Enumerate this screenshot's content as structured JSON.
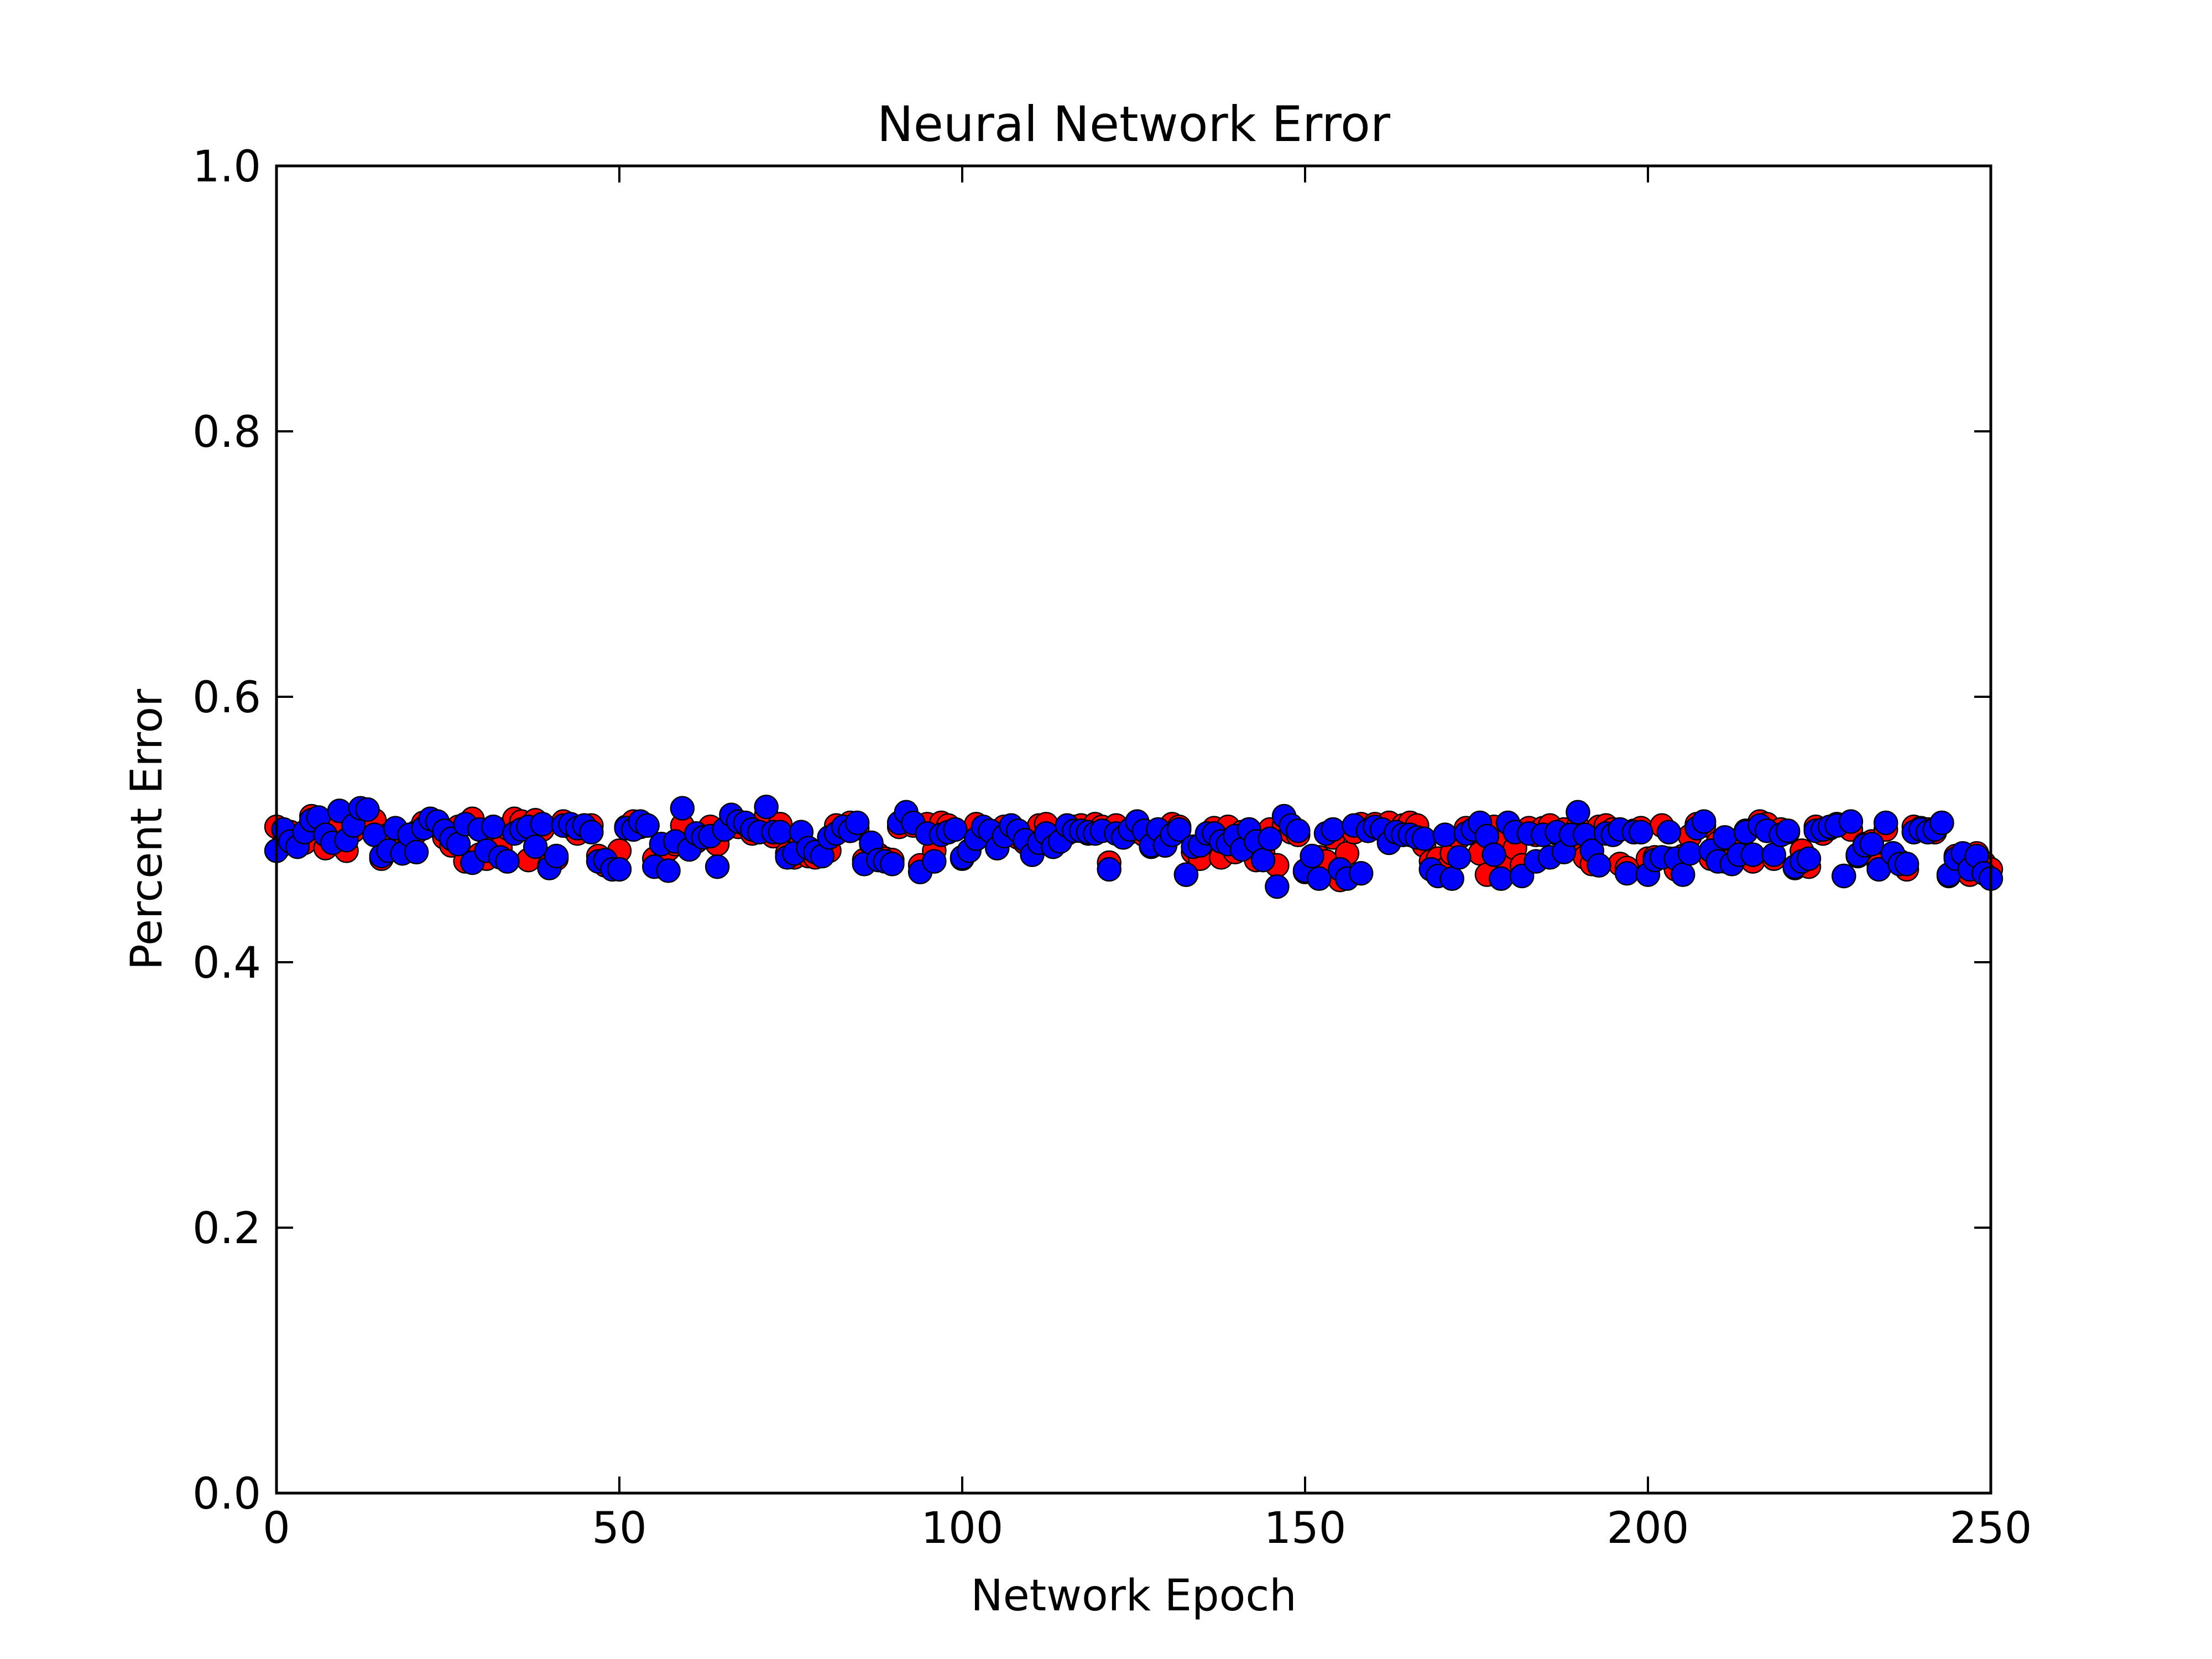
{
  "chart_data": {
    "type": "scatter",
    "title": "Neural Network Error",
    "xlabel": "Network Epoch",
    "ylabel": "Percent Error",
    "xlim": [
      0,
      250
    ],
    "ylim": [
      0.0,
      1.0
    ],
    "xticks": [
      0,
      50,
      100,
      150,
      200,
      250
    ],
    "xtick_labels": [
      "0",
      "50",
      "100",
      "150",
      "200",
      "250"
    ],
    "yticks": [
      0.0,
      0.2,
      0.4,
      0.6,
      0.8,
      1.0
    ],
    "ytick_labels": [
      "0.0",
      "0.2",
      "0.4",
      "0.6",
      "0.8",
      "1.0"
    ],
    "grid": false,
    "legend": "none",
    "series": [
      {
        "color": "#ff0000",
        "values": [
          0.502,
          0.489,
          0.498,
          0.494,
          0.49,
          0.51,
          0.508,
          0.486,
          0.494,
          0.503,
          0.484,
          0.499,
          0.508,
          0.511,
          0.507,
          0.478,
          0.496,
          0.497,
          0.485,
          0.494,
          0.498,
          0.505,
          0.506,
          0.502,
          0.494,
          0.488,
          0.502,
          0.476,
          0.508,
          0.481,
          0.478,
          0.493,
          0.486,
          0.501,
          0.508,
          0.506,
          0.477,
          0.507,
          0.5,
          0.473,
          0.478,
          0.506,
          0.502,
          0.497,
          0.501,
          0.503,
          0.48,
          0.473,
          0.471,
          0.484,
          0.502,
          0.506,
          0.502,
          0.503,
          0.478,
          0.472,
          0.485,
          0.489,
          0.503,
          0.487,
          0.491,
          0.496,
          0.502,
          0.489,
          0.5,
          0.508,
          0.502,
          0.504,
          0.497,
          0.501,
          0.511,
          0.495,
          0.504,
          0.482,
          0.479,
          0.491,
          0.48,
          0.479,
          0.48,
          0.484,
          0.503,
          0.501,
          0.505,
          0.501,
          0.477,
          0.489,
          0.481,
          0.478,
          0.477,
          0.502,
          0.508,
          0.503,
          0.473,
          0.504,
          0.484,
          0.505,
          0.503,
          0.5,
          0.478,
          0.484,
          0.504,
          0.499,
          0.498,
          0.486,
          0.502,
          0.496,
          0.494,
          0.49,
          0.482,
          0.503,
          0.504,
          0.487,
          0.494,
          0.497,
          0.502,
          0.503,
          0.497,
          0.504,
          0.502,
          0.475,
          0.503,
          0.496,
          0.498,
          0.501,
          0.496,
          0.487,
          0.499,
          0.488,
          0.504,
          0.502,
          0.466,
          0.483,
          0.478,
          0.494,
          0.501,
          0.479,
          0.502,
          0.483,
          0.498,
          0.5,
          0.477,
          0.483,
          0.5,
          0.473,
          0.503,
          0.498,
          0.496,
          0.468,
          0.475,
          0.479,
          0.476,
          0.494,
          0.462,
          0.482,
          0.498,
          0.504,
          0.5,
          0.504,
          0.501,
          0.505,
          0.496,
          0.503,
          0.505,
          0.503,
          0.488,
          0.476,
          0.478,
          0.47,
          0.482,
          0.494,
          0.501,
          0.497,
          0.482,
          0.466,
          0.502,
          0.49,
          0.474,
          0.486,
          0.473,
          0.501,
          0.496,
          0.501,
          0.503,
          0.497,
          0.5,
          0.486,
          0.502,
          0.479,
          0.474,
          0.502,
          0.503,
          0.5,
          0.474,
          0.471,
          0.499,
          0.501,
          0.478,
          0.479,
          0.503,
          0.478,
          0.47,
          0.48,
          0.495,
          0.504,
          0.503,
          0.478,
          0.49,
          0.476,
          0.477,
          0.486,
          0.499,
          0.476,
          0.506,
          0.504,
          0.478,
          0.5,
          0.498,
          0.471,
          0.484,
          0.472,
          0.502,
          0.497,
          0.501,
          0.504,
          0.465,
          0.5,
          0.48,
          0.489,
          0.491,
          0.473,
          0.5,
          0.482,
          0.476,
          0.47,
          0.502,
          0.501,
          0.5,
          0.498,
          0.505,
          0.465,
          0.48,
          0.479,
          0.466,
          0.482,
          0.475,
          0.47
        ]
      },
      {
        "color": "#0000ff",
        "values": [
          0.484,
          0.5,
          0.491,
          0.487,
          0.498,
          0.507,
          0.509,
          0.496,
          0.49,
          0.514,
          0.492,
          0.503,
          0.516,
          0.515,
          0.496,
          0.48,
          0.484,
          0.501,
          0.482,
          0.496,
          0.483,
          0.501,
          0.508,
          0.506,
          0.499,
          0.493,
          0.489,
          0.504,
          0.475,
          0.5,
          0.484,
          0.502,
          0.479,
          0.476,
          0.497,
          0.5,
          0.502,
          0.487,
          0.504,
          0.471,
          0.48,
          0.503,
          0.504,
          0.501,
          0.503,
          0.498,
          0.476,
          0.477,
          0.47,
          0.47,
          0.501,
          0.5,
          0.506,
          0.503,
          0.472,
          0.489,
          0.469,
          0.491,
          0.516,
          0.485,
          0.497,
          0.494,
          0.495,
          0.472,
          0.5,
          0.511,
          0.506,
          0.505,
          0.5,
          0.498,
          0.517,
          0.498,
          0.498,
          0.479,
          0.482,
          0.498,
          0.486,
          0.483,
          0.48,
          0.494,
          0.497,
          0.502,
          0.499,
          0.505,
          0.474,
          0.49,
          0.477,
          0.476,
          0.474,
          0.505,
          0.513,
          0.505,
          0.468,
          0.497,
          0.476,
          0.496,
          0.498,
          0.5,
          0.479,
          0.484,
          0.493,
          0.502,
          0.499,
          0.486,
          0.495,
          0.503,
          0.499,
          0.492,
          0.481,
          0.49,
          0.497,
          0.487,
          0.491,
          0.503,
          0.499,
          0.499,
          0.498,
          0.497,
          0.499,
          0.47,
          0.497,
          0.494,
          0.5,
          0.506,
          0.499,
          0.488,
          0.5,
          0.488,
          0.496,
          0.5,
          0.466,
          0.487,
          0.488,
          0.497,
          0.497,
          0.491,
          0.489,
          0.495,
          0.485,
          0.5,
          0.491,
          0.477,
          0.493,
          0.457,
          0.51,
          0.503,
          0.499,
          0.469,
          0.48,
          0.463,
          0.497,
          0.5,
          0.47,
          0.463,
          0.503,
          0.467,
          0.499,
          0.502,
          0.5,
          0.49,
          0.498,
          0.496,
          0.496,
          0.494,
          0.493,
          0.47,
          0.465,
          0.496,
          0.463,
          0.479,
          0.497,
          0.5,
          0.505,
          0.495,
          0.481,
          0.463,
          0.505,
          0.498,
          0.465,
          0.497,
          0.476,
          0.496,
          0.479,
          0.498,
          0.483,
          0.496,
          0.513,
          0.496,
          0.484,
          0.473,
          0.497,
          0.496,
          0.5,
          0.467,
          0.498,
          0.498,
          0.466,
          0.477,
          0.479,
          0.498,
          0.478,
          0.466,
          0.482,
          0.501,
          0.506,
          0.484,
          0.476,
          0.494,
          0.474,
          0.481,
          0.498,
          0.481,
          0.503,
          0.499,
          0.481,
          0.496,
          0.499,
          0.472,
          0.476,
          0.478,
          0.499,
          0.5,
          0.502,
          0.503,
          0.465,
          0.506,
          0.481,
          0.488,
          0.489,
          0.47,
          0.505,
          0.482,
          0.474,
          0.474,
          0.498,
          0.5,
          0.498,
          0.5,
          0.505,
          0.466,
          0.478,
          0.482,
          0.47,
          0.48,
          0.467,
          0.463
        ]
      }
    ]
  }
}
